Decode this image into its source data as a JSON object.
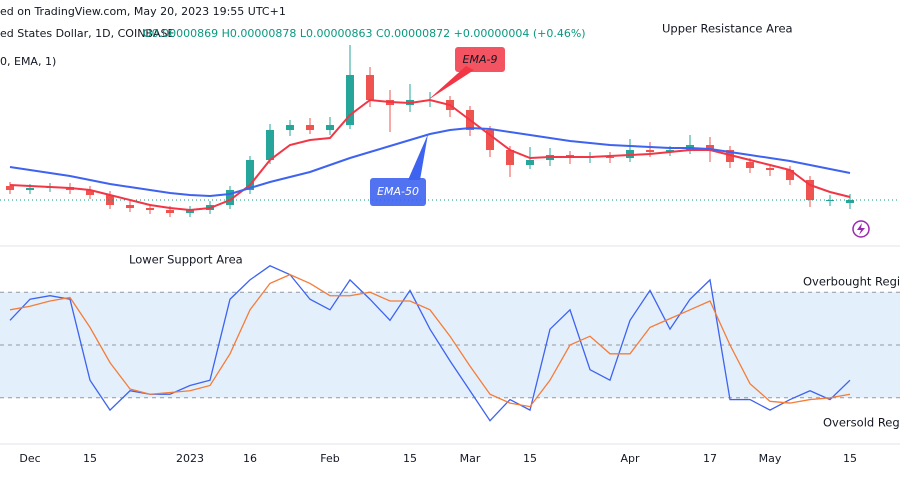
{
  "header": {
    "source": "ed on TradingView.com, May 20, 2023 19:55 UTC+1",
    "symbol": "ed States Dollar, 1D, COINBASE",
    "ohlc": "O0.00000869 H0.00000878 L0.00000863 C0.00000872 +0.00000004 (+0.46%)",
    "indicator": "0, EMA, 1)"
  },
  "chart_data": [
    {
      "type": "candlestick",
      "annotations": [
        "Upper Resistance Area"
      ],
      "categories": [
        null,
        "Dec",
        null,
        null,
        "15",
        null,
        null,
        null,
        null,
        "2023",
        null,
        null,
        "16",
        null,
        null,
        null,
        "Feb",
        null,
        null,
        null,
        "15",
        null,
        null,
        "Mar",
        null,
        null,
        "15",
        null,
        null,
        null,
        null,
        "Apr",
        null,
        null,
        null,
        "17",
        null,
        null,
        "May",
        null,
        null,
        null,
        "15"
      ],
      "open": [
        8.86e-06,
        8.82e-06,
        8.84e-06,
        8.85e-06,
        8.82e-06,
        8.77e-06,
        8.67e-06,
        8.64e-06,
        8.62e-06,
        8.59e-06,
        8.62e-06,
        8.67e-06,
        8.82e-06,
        9.12e-06,
        9.42e-06,
        9.47e-06,
        9.42e-06,
        9.47e-06,
        9.97e-06,
        9.72e-06,
        9.67e-06,
        9.72e-06,
        9.72e-06,
        9.62e-06,
        9.42e-06,
        9.22e-06,
        9.07e-06,
        9.12e-06,
        9.17e-06,
        9.14e-06,
        9.15e-06,
        9.14e-06,
        9.22e-06,
        9.2e-06,
        9.22e-06,
        9.27e-06,
        9.22e-06,
        9.1e-06,
        9.04e-06,
        9.02e-06,
        8.92e-06,
        8.72e-06,
        8.69e-06
      ],
      "high": [
        8.9e-06,
        8.88e-06,
        8.89e-06,
        8.89e-06,
        8.86e-06,
        8.81e-06,
        8.71e-06,
        8.68e-06,
        8.66e-06,
        8.66e-06,
        8.71e-06,
        8.86e-06,
        9.16e-06,
        9.48e-06,
        9.52e-06,
        9.54e-06,
        9.55e-06,
        1.027e-05,
        1.005e-05,
        9.82e-06,
        9.88e-06,
        9.8e-06,
        9.76e-06,
        9.66e-06,
        9.46e-06,
        9.26e-06,
        9.25e-06,
        9.24e-06,
        9.21e-06,
        9.2e-06,
        9.2e-06,
        9.33e-06,
        9.3e-06,
        9.26e-06,
        9.37e-06,
        9.35e-06,
        9.26e-06,
        9.14e-06,
        9.08e-06,
        9.06e-06,
        8.96e-06,
        8.77e-06,
        8.78e-06
      ],
      "low": [
        8.78e-06,
        8.78e-06,
        8.8e-06,
        8.78e-06,
        8.73e-06,
        8.63e-06,
        8.6e-06,
        8.58e-06,
        8.55e-06,
        8.55e-06,
        8.58e-06,
        8.63e-06,
        8.78e-06,
        9.08e-06,
        9.36e-06,
        9.38e-06,
        9.37e-06,
        9.43e-06,
        9.65e-06,
        9.4e-06,
        9.6e-06,
        9.65e-06,
        9.55e-06,
        9.36e-06,
        9.15e-06,
        8.95e-06,
        9.03e-06,
        9.06e-06,
        9.08e-06,
        9.09e-06,
        9.09e-06,
        9.1e-06,
        9.15e-06,
        9.16e-06,
        9.18e-06,
        9.1e-06,
        9.04e-06,
        8.99e-06,
        8.96e-06,
        8.87e-06,
        8.65e-06,
        8.66e-06,
        8.63e-06
      ],
      "close": [
        8.82e-06,
        8.84e-06,
        8.85e-06,
        8.82e-06,
        8.77e-06,
        8.67e-06,
        8.64e-06,
        8.62e-06,
        8.59e-06,
        8.62e-06,
        8.67e-06,
        8.82e-06,
        9.12e-06,
        9.42e-06,
        9.47e-06,
        9.42e-06,
        9.47e-06,
        9.97e-06,
        9.72e-06,
        9.67e-06,
        9.72e-06,
        9.72e-06,
        9.62e-06,
        9.42e-06,
        9.22e-06,
        9.07e-06,
        9.12e-06,
        9.17e-06,
        9.14e-06,
        9.15e-06,
        9.14e-06,
        9.22e-06,
        9.2e-06,
        9.22e-06,
        9.27e-06,
        9.22e-06,
        9.1e-06,
        9.04e-06,
        9.02e-06,
        8.92e-06,
        8.72e-06,
        8.72e-06,
        8.72e-06
      ],
      "up_color": "#26a69a",
      "down_color": "#ef5350",
      "series": [
        {
          "name": "EMA-9",
          "color": "#f23645",
          "values": [
            8.87e-06,
            8.86e-06,
            8.85e-06,
            8.84e-06,
            8.82e-06,
            8.77e-06,
            8.72e-06,
            8.67e-06,
            8.64e-06,
            8.62e-06,
            8.64e-06,
            8.72e-06,
            8.87e-06,
            9.12e-06,
            9.27e-06,
            9.32e-06,
            9.34e-06,
            9.57e-06,
            9.72e-06,
            9.7e-06,
            9.69e-06,
            9.72e-06,
            9.67e-06,
            9.52e-06,
            9.37e-06,
            9.22e-06,
            9.14e-06,
            9.15e-06,
            9.15e-06,
            9.15e-06,
            9.16e-06,
            9.17e-06,
            9.18e-06,
            9.2e-06,
            9.22e-06,
            9.22e-06,
            9.17e-06,
            9.12e-06,
            9.07e-06,
            9.02e-06,
            8.87e-06,
            8.8e-06,
            8.75e-06
          ]
        },
        {
          "name": "EMA-50",
          "color": "#3e63f0",
          "values": [
            9.05e-06,
            9.02e-06,
            8.99e-06,
            8.96e-06,
            8.92e-06,
            8.88e-06,
            8.85e-06,
            8.82e-06,
            8.79e-06,
            8.77e-06,
            8.76e-06,
            8.78e-06,
            8.84e-06,
            8.9e-06,
            8.95e-06,
            9e-06,
            9.07e-06,
            9.14e-06,
            9.2e-06,
            9.26e-06,
            9.32e-06,
            9.38e-06,
            9.42e-06,
            9.44e-06,
            9.43e-06,
            9.4e-06,
            9.37e-06,
            9.34e-06,
            9.31e-06,
            9.29e-06,
            9.27e-06,
            9.26e-06,
            9.25e-06,
            9.24e-06,
            9.24e-06,
            9.23e-06,
            9.2e-06,
            9.17e-06,
            9.14e-06,
            9.11e-06,
            9.07e-06,
            9.03e-06,
            8.99e-06
          ]
        }
      ],
      "ylim": [
        8.32e-06,
        1.042e-05
      ]
    },
    {
      "type": "line",
      "annotations": [
        "Lower Support Area",
        "Overbought Regio",
        "Oversold Regio"
      ],
      "ylim": [
        0,
        100
      ],
      "hlines": [
        80,
        50,
        20
      ],
      "band_color": "#e3f0fb",
      "series": [
        {
          "color": "#3e63f0",
          "values": [
            64,
            76,
            78,
            76,
            30,
            13,
            24,
            22,
            22,
            27,
            30,
            76,
            87,
            95,
            90,
            76,
            70,
            87,
            76,
            64,
            81,
            59,
            41,
            24,
            7,
            19,
            13,
            59,
            70,
            36,
            30,
            64,
            81,
            59,
            76,
            87,
            19,
            19,
            13,
            19,
            24,
            19,
            30
          ]
        },
        {
          "color": "#f57c3a",
          "values": [
            70,
            72,
            75,
            77,
            60,
            40,
            25,
            22,
            23,
            24,
            27,
            45,
            70,
            85,
            90,
            85,
            78,
            78,
            80,
            75,
            75,
            70,
            55,
            38,
            22,
            17,
            15,
            30,
            50,
            55,
            45,
            45,
            60,
            65,
            70,
            75,
            50,
            28,
            18,
            17,
            19,
            20,
            22
          ]
        }
      ]
    }
  ]
}
